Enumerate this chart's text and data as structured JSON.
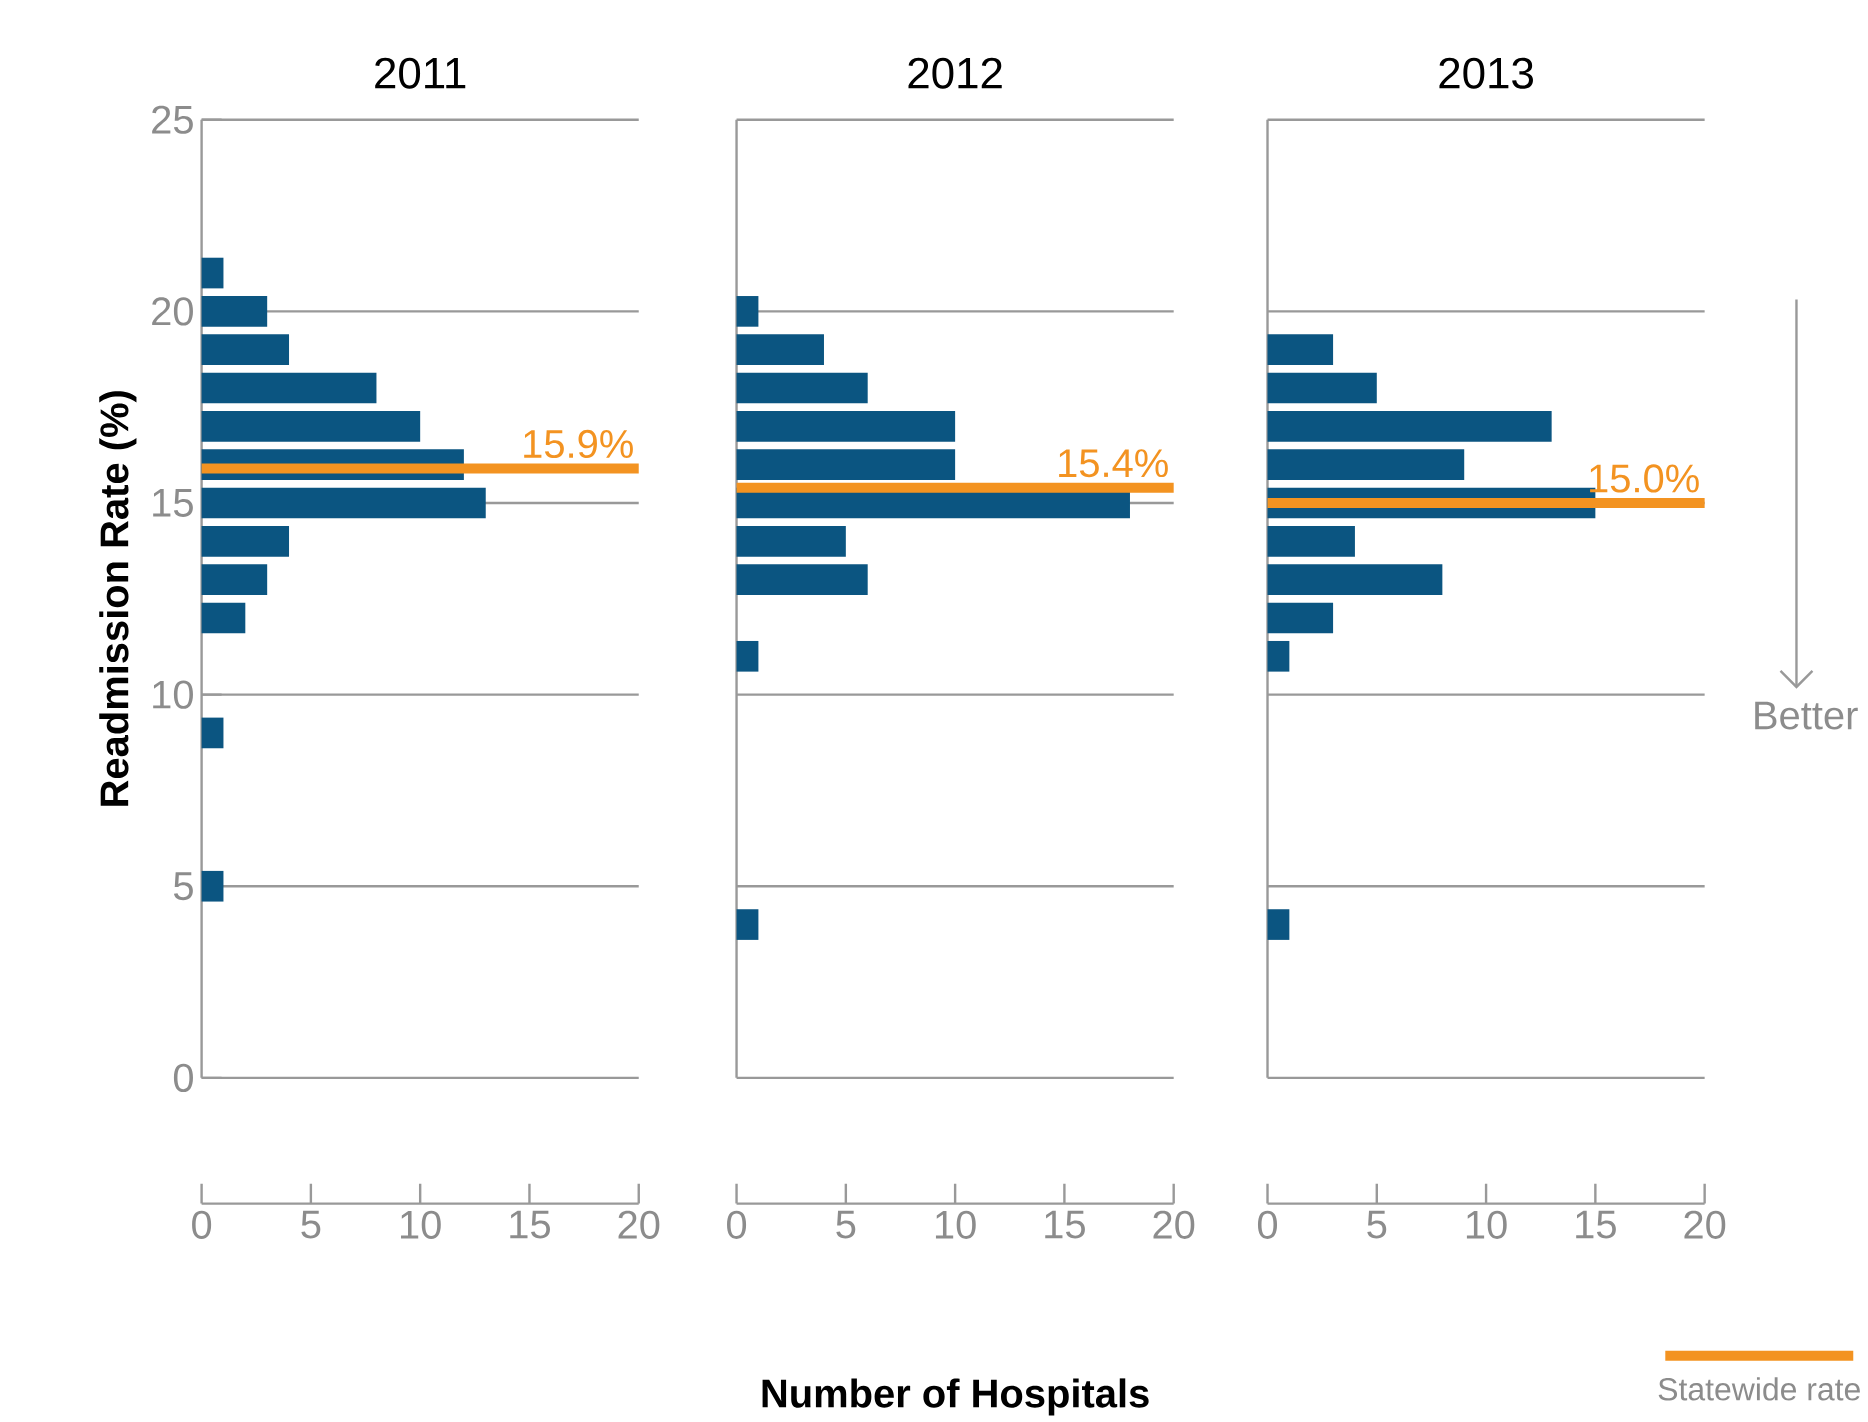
{
  "chart_data": [
    {
      "type": "bar",
      "orientation": "horizontal",
      "title": "2011",
      "ylabel": "Readmission Rate (%)",
      "color": "#0b5581",
      "x": [
        21,
        20,
        19,
        18,
        17,
        16,
        15,
        14,
        13,
        12,
        9,
        5
      ],
      "values": [
        1,
        3,
        4,
        8,
        10,
        12,
        13,
        4,
        3,
        2,
        1,
        1
      ],
      "xlim": [
        0,
        20
      ],
      "xticks": [
        0,
        5,
        10,
        15,
        20
      ],
      "ylim": [
        0,
        25
      ],
      "yticks": [
        0,
        5,
        10,
        15,
        20,
        25
      ],
      "grid": "y",
      "ref_lines": [
        {
          "axis": "y",
          "value": 15.9,
          "label": "15.9%",
          "color": "#f39321"
        }
      ]
    },
    {
      "type": "bar",
      "orientation": "horizontal",
      "title": "2012",
      "xlabel": "Number of Hospitals",
      "color": "#0b5581",
      "x": [
        20,
        19,
        18,
        17,
        16,
        15,
        14,
        13,
        11,
        4
      ],
      "values": [
        1,
        4,
        6,
        10,
        10,
        18,
        5,
        6,
        1,
        1
      ],
      "xlim": [
        0,
        20
      ],
      "xticks": [
        0,
        5,
        10,
        15,
        20
      ],
      "ylim": [
        0,
        25
      ],
      "yticks": [
        0,
        5,
        10,
        15,
        20,
        25
      ],
      "grid": "y",
      "tick_labels": "x",
      "ref_lines": [
        {
          "axis": "y",
          "value": 15.4,
          "label": "15.4%",
          "color": "#f39321"
        }
      ]
    },
    {
      "type": "bar",
      "orientation": "horizontal",
      "title": "2013",
      "color": "#0b5581",
      "x": [
        19,
        18,
        17,
        16,
        15,
        14,
        13,
        12,
        11,
        4
      ],
      "values": [
        3,
        5,
        13,
        9,
        15,
        4,
        8,
        3,
        1,
        1
      ],
      "xlim": [
        0,
        20
      ],
      "xticks": [
        0,
        5,
        10,
        15,
        20
      ],
      "ylim": [
        0,
        25
      ],
      "yticks": [
        0,
        5,
        10,
        15,
        20,
        25
      ],
      "grid": "y",
      "tick_labels": "x",
      "ref_lines": [
        {
          "axis": "y",
          "value": 15.0,
          "label": "15.0%",
          "color": "#f39321"
        }
      ],
      "annotations": [
        "Better",
        "Statewide rate"
      ]
    }
  ]
}
